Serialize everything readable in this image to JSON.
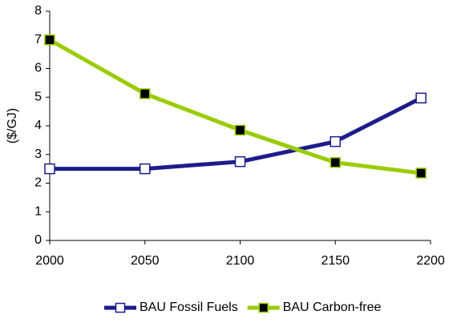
{
  "chart_data": {
    "type": "line",
    "y_label": "($/GJ)",
    "x": [
      2000,
      2050,
      2100,
      2150,
      2195
    ],
    "series": [
      {
        "name": "BAU Fossil Fuels",
        "color": "#1c1c8c",
        "marker": "open-square",
        "values": [
          2.5,
          2.5,
          2.75,
          3.45,
          4.97
        ]
      },
      {
        "name": "BAU Carbon-free",
        "color": "#99cc00",
        "marker": "filled-square",
        "values": [
          7.0,
          5.12,
          3.85,
          2.72,
          2.35
        ]
      }
    ],
    "xlim": [
      2000,
      2200
    ],
    "xticks": [
      2000,
      2050,
      2100,
      2150,
      2200
    ],
    "ylim": [
      0,
      8
    ],
    "yticks": [
      0,
      1,
      2,
      3,
      4,
      5,
      6,
      7,
      8
    ],
    "grid": false,
    "legend": "bottom"
  }
}
